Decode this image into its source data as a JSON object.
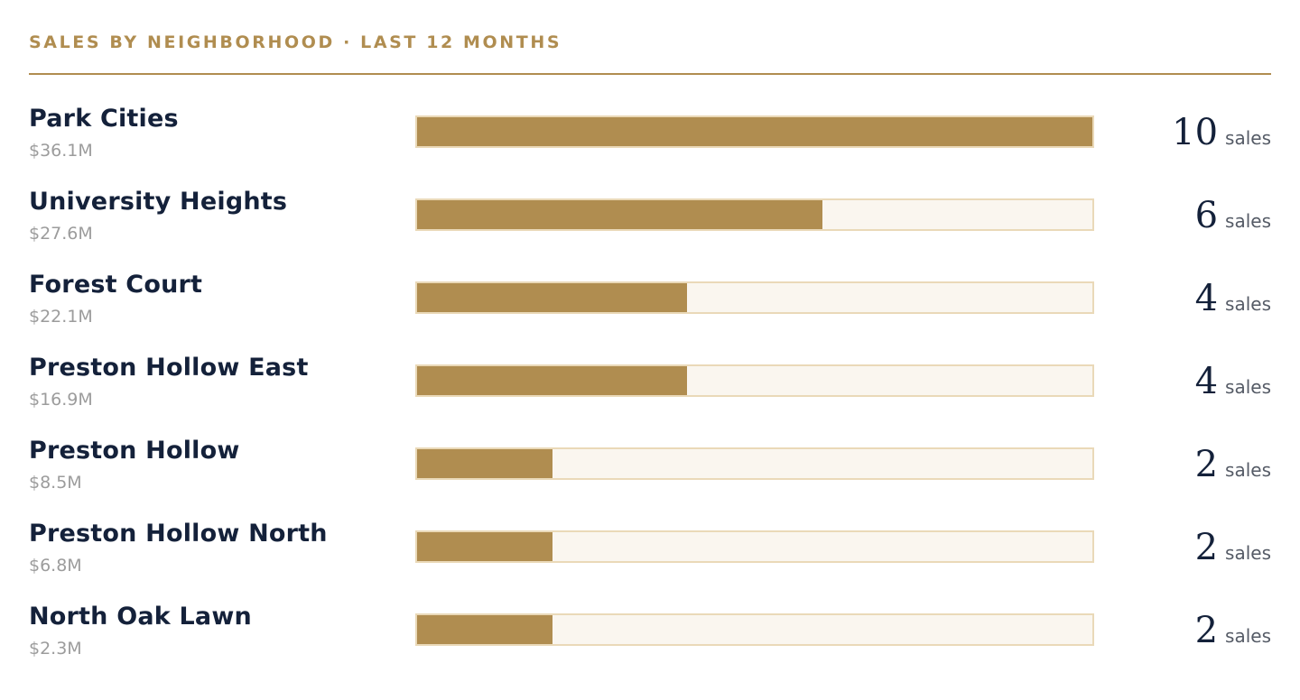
{
  "header": {
    "title": "SALES BY NEIGHBORHOOD · LAST 12 MONTHS"
  },
  "colors": {
    "accent": "#b08d50",
    "track": "#faf6ef",
    "track_border": "#ead9b8",
    "text": "#14213a",
    "muted": "#9c9c9c"
  },
  "chart_data": {
    "type": "bar",
    "title": "SALES BY NEIGHBORHOOD · LAST 12 MONTHS",
    "unit_label": "sales",
    "max": 10,
    "categories": [
      "Park Cities",
      "University Heights",
      "Forest Court",
      "Preston Hollow East",
      "Preston Hollow",
      "Preston Hollow North",
      "North Oak Lawn"
    ],
    "volumes": [
      "$36.1M",
      "$27.6M",
      "$22.1M",
      "$16.9M",
      "$8.5M",
      "$6.8M",
      "$2.3M"
    ],
    "values": [
      10,
      6,
      4,
      4,
      2,
      2,
      2
    ]
  }
}
